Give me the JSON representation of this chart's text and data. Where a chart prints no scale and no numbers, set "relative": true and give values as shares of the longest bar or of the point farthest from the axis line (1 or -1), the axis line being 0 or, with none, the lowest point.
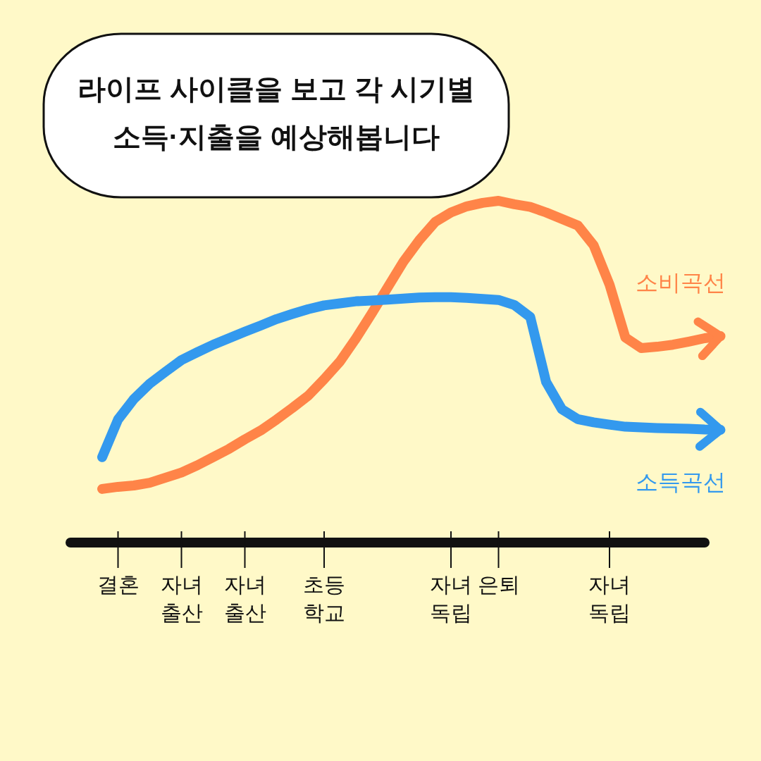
{
  "chart_data": {
    "type": "line",
    "title": "라이프 사이클을 보고 각 시기별 소득·지출을 예상해봅니다",
    "relative": true,
    "categories": [
      null,
      null,
      null,
      "결혼",
      null,
      null,
      null,
      "자녀 출산",
      null,
      null,
      null,
      "자녀 출산",
      null,
      null,
      null,
      null,
      "초등 학교",
      null,
      null,
      null,
      null,
      null,
      null,
      null,
      "자녀 독립",
      null,
      null,
      "은퇴",
      null,
      null,
      null,
      null,
      null,
      null,
      "자녀 독립",
      null,
      null,
      null,
      null,
      null,
      null,
      null,
      null
    ],
    "series": [
      {
        "name": "소비곡선",
        "color": "#ff8448",
        "values": [
          null,
          null,
          0.157,
          0.163,
          0.167,
          0.175,
          0.19,
          0.205,
          0.226,
          0.25,
          0.274,
          0.302,
          0.328,
          0.36,
          0.394,
          0.43,
          0.478,
          0.53,
          0.597,
          0.67,
          0.746,
          0.822,
          0.885,
          0.938,
          0.966,
          0.984,
          0.994,
          1,
          0.99,
          0.982,
          0.966,
          0.947,
          0.928,
          0.87,
          0.755,
          0.6,
          0.569,
          0.573,
          0.579,
          0.588,
          0.598,
          0.604,
          null
        ]
      },
      {
        "name": "소득곡선",
        "color": "#3399ee",
        "values": [
          null,
          null,
          0.25,
          0.36,
          0.42,
          0.465,
          0.5,
          0.534,
          0.557,
          0.579,
          0.598,
          0.617,
          0.635,
          0.654,
          0.669,
          0.683,
          0.694,
          0.7,
          0.706,
          0.708,
          0.711,
          0.714,
          0.717,
          0.718,
          0.718,
          0.716,
          0.713,
          0.71,
          0.695,
          0.66,
          0.47,
          0.39,
          0.361,
          0.352,
          0.345,
          0.339,
          0.337,
          0.335,
          0.334,
          0.333,
          0.331,
          0.33,
          null
        ]
      }
    ]
  }
}
